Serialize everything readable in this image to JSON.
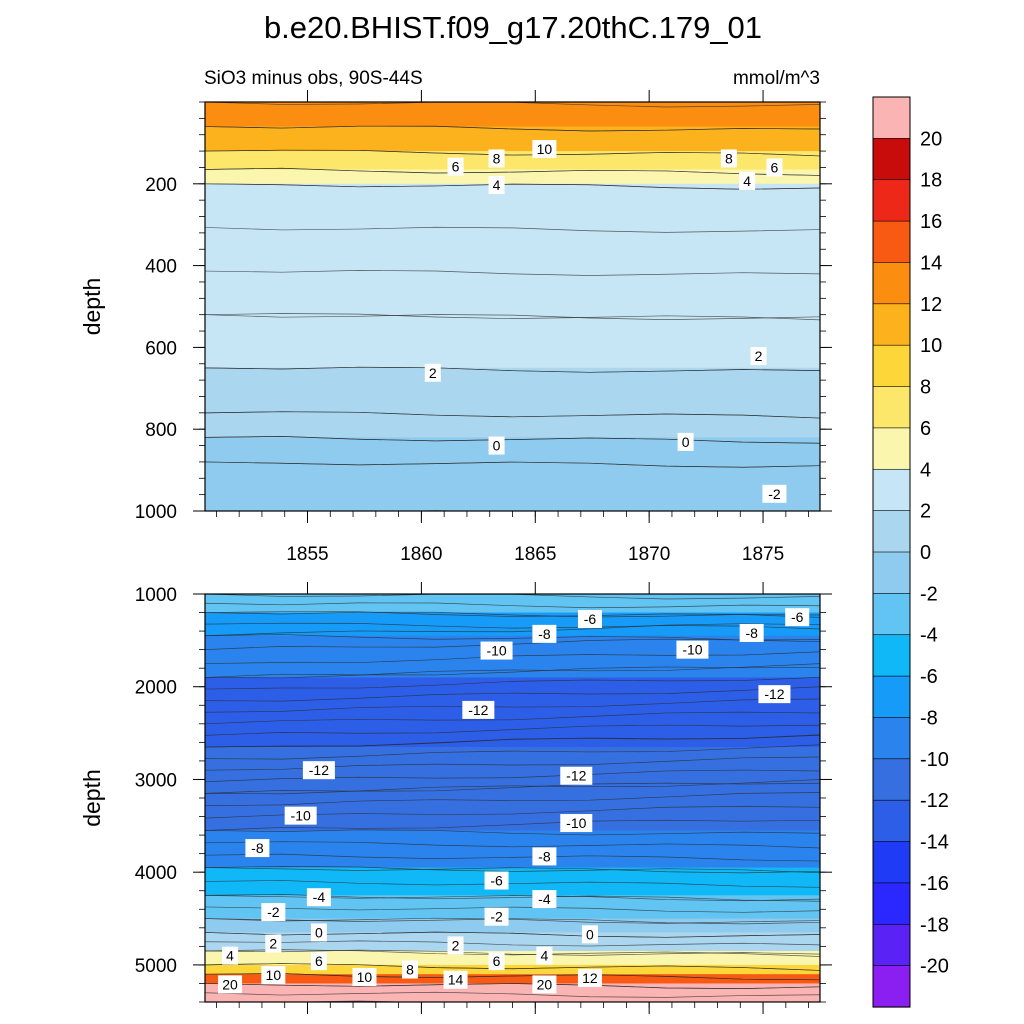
{
  "chart_data": {
    "type": "contour",
    "title": "b.e20.BHIST.f09_g17.20thC.179_01",
    "subtitle_left": "SiO3 minus obs, 90S-44S",
    "subtitle_right": "mmol/m^3",
    "colorbar": {
      "levels": [
        -20,
        -18,
        -16,
        -14,
        -12,
        -10,
        -8,
        -6,
        -4,
        -2,
        0,
        2,
        4,
        6,
        8,
        10,
        12,
        14,
        16,
        18,
        20
      ],
      "tick_labels": [
        "-20",
        "-18",
        "-16",
        "-14",
        "-12",
        "-10",
        "-8",
        "-6",
        "-4",
        "-2",
        "0",
        "2",
        "4",
        "6",
        "8",
        "10",
        "12",
        "14",
        "16",
        "18",
        "20"
      ]
    },
    "panels": [
      {
        "name": "upper",
        "ylabel": "depth",
        "ylim": [
          0,
          1000
        ],
        "y_reversed": true,
        "xlim": [
          1850.5,
          1877.5
        ],
        "x_ticks": [
          1855,
          1860,
          1865,
          1870,
          1875
        ],
        "y_ticks": [
          200,
          400,
          600,
          800,
          1000
        ],
        "bands": [
          {
            "top": 0,
            "bottom": 60,
            "value": 12
          },
          {
            "top": 60,
            "bottom": 120,
            "value": 10
          },
          {
            "top": 120,
            "bottom": 165,
            "value": 6
          },
          {
            "top": 165,
            "bottom": 200,
            "value": 4
          },
          {
            "top": 200,
            "bottom": 520,
            "value": 3
          },
          {
            "top": 520,
            "bottom": 650,
            "value": 2.5
          },
          {
            "top": 650,
            "bottom": 760,
            "value": 1.5
          },
          {
            "top": 760,
            "bottom": 820,
            "value": 0.5
          },
          {
            "top": 820,
            "bottom": 880,
            "value": -1
          },
          {
            "top": 880,
            "bottom": 1000,
            "value": -1.5
          }
        ],
        "contour_labels": [
          {
            "text": "10",
            "x": 1865.4,
            "y": 115
          },
          {
            "text": "8",
            "x": 1863.3,
            "y": 138
          },
          {
            "text": "6",
            "x": 1861.5,
            "y": 158
          },
          {
            "text": "8",
            "x": 1873.5,
            "y": 138
          },
          {
            "text": "6",
            "x": 1875.5,
            "y": 160
          },
          {
            "text": "4",
            "x": 1863.3,
            "y": 203
          },
          {
            "text": "4",
            "x": 1874.3,
            "y": 193
          },
          {
            "text": "2",
            "x": 1860.5,
            "y": 662
          },
          {
            "text": "2",
            "x": 1874.8,
            "y": 621
          },
          {
            "text": "0",
            "x": 1863.3,
            "y": 840
          },
          {
            "text": "0",
            "x": 1871.6,
            "y": 831
          },
          {
            "text": "-2",
            "x": 1875.5,
            "y": 958
          }
        ]
      },
      {
        "name": "lower",
        "ylabel": "depth",
        "ylim": [
          1000,
          5400
        ],
        "y_reversed": true,
        "xlim": [
          1850.5,
          1877.5
        ],
        "x_ticks": [
          1855,
          1860,
          1865,
          1870,
          1875
        ],
        "y_ticks": [
          1000,
          2000,
          3000,
          4000,
          5000
        ],
        "bands": [
          {
            "top": 1000,
            "bottom": 1200,
            "value": -4
          },
          {
            "top": 1200,
            "bottom": 1450,
            "value": -7
          },
          {
            "top": 1450,
            "bottom": 1900,
            "value": -10
          },
          {
            "top": 1900,
            "bottom": 2650,
            "value": -12.5
          },
          {
            "top": 2650,
            "bottom": 3150,
            "value": -12
          },
          {
            "top": 3150,
            "bottom": 3550,
            "value": -10.5
          },
          {
            "top": 3550,
            "bottom": 3950,
            "value": -8.5
          },
          {
            "top": 3950,
            "bottom": 4250,
            "value": -6
          },
          {
            "top": 4250,
            "bottom": 4500,
            "value": -3.5
          },
          {
            "top": 4500,
            "bottom": 4650,
            "value": -1
          },
          {
            "top": 4650,
            "bottom": 4850,
            "value": 1
          },
          {
            "top": 4850,
            "bottom": 5000,
            "value": 4
          },
          {
            "top": 5000,
            "bottom": 5100,
            "value": 9
          },
          {
            "top": 5100,
            "bottom": 5200,
            "value": 15
          },
          {
            "top": 5200,
            "bottom": 5400,
            "value": 20
          }
        ],
        "contour_labels": [
          {
            "text": "-6",
            "x": 1867.4,
            "y": 1270
          },
          {
            "text": "-6",
            "x": 1876.5,
            "y": 1250
          },
          {
            "text": "-8",
            "x": 1865.4,
            "y": 1430
          },
          {
            "text": "-8",
            "x": 1874.5,
            "y": 1420
          },
          {
            "text": "-10",
            "x": 1863.3,
            "y": 1610
          },
          {
            "text": "-10",
            "x": 1871.9,
            "y": 1600
          },
          {
            "text": "-12",
            "x": 1862.5,
            "y": 2250
          },
          {
            "text": "-12",
            "x": 1875.5,
            "y": 2080
          },
          {
            "text": "-12",
            "x": 1855.5,
            "y": 2900
          },
          {
            "text": "-12",
            "x": 1866.8,
            "y": 2960
          },
          {
            "text": "-10",
            "x": 1854.7,
            "y": 3390
          },
          {
            "text": "-10",
            "x": 1866.8,
            "y": 3470
          },
          {
            "text": "-8",
            "x": 1852.8,
            "y": 3740
          },
          {
            "text": "-8",
            "x": 1865.4,
            "y": 3830
          },
          {
            "text": "-6",
            "x": 1863.3,
            "y": 4090
          },
          {
            "text": "-4",
            "x": 1855.5,
            "y": 4270
          },
          {
            "text": "-4",
            "x": 1865.4,
            "y": 4290
          },
          {
            "text": "-2",
            "x": 1853.5,
            "y": 4430
          },
          {
            "text": "-2",
            "x": 1863.3,
            "y": 4480
          },
          {
            "text": "0",
            "x": 1855.5,
            "y": 4650
          },
          {
            "text": "0",
            "x": 1867.4,
            "y": 4670
          },
          {
            "text": "2",
            "x": 1853.5,
            "y": 4770
          },
          {
            "text": "2",
            "x": 1861.5,
            "y": 4790
          },
          {
            "text": "4",
            "x": 1851.6,
            "y": 4900
          },
          {
            "text": "4",
            "x": 1865.4,
            "y": 4900
          },
          {
            "text": "6",
            "x": 1855.5,
            "y": 4960
          },
          {
            "text": "6",
            "x": 1863.3,
            "y": 4960
          },
          {
            "text": "10",
            "x": 1853.5,
            "y": 5110
          },
          {
            "text": "10",
            "x": 1857.5,
            "y": 5130
          },
          {
            "text": "8",
            "x": 1859.5,
            "y": 5050
          },
          {
            "text": "14",
            "x": 1861.5,
            "y": 5160
          },
          {
            "text": "12",
            "x": 1867.4,
            "y": 5140
          },
          {
            "text": "20",
            "x": 1851.6,
            "y": 5210
          },
          {
            "text": "20",
            "x": 1865.4,
            "y": 5210
          }
        ]
      }
    ]
  }
}
